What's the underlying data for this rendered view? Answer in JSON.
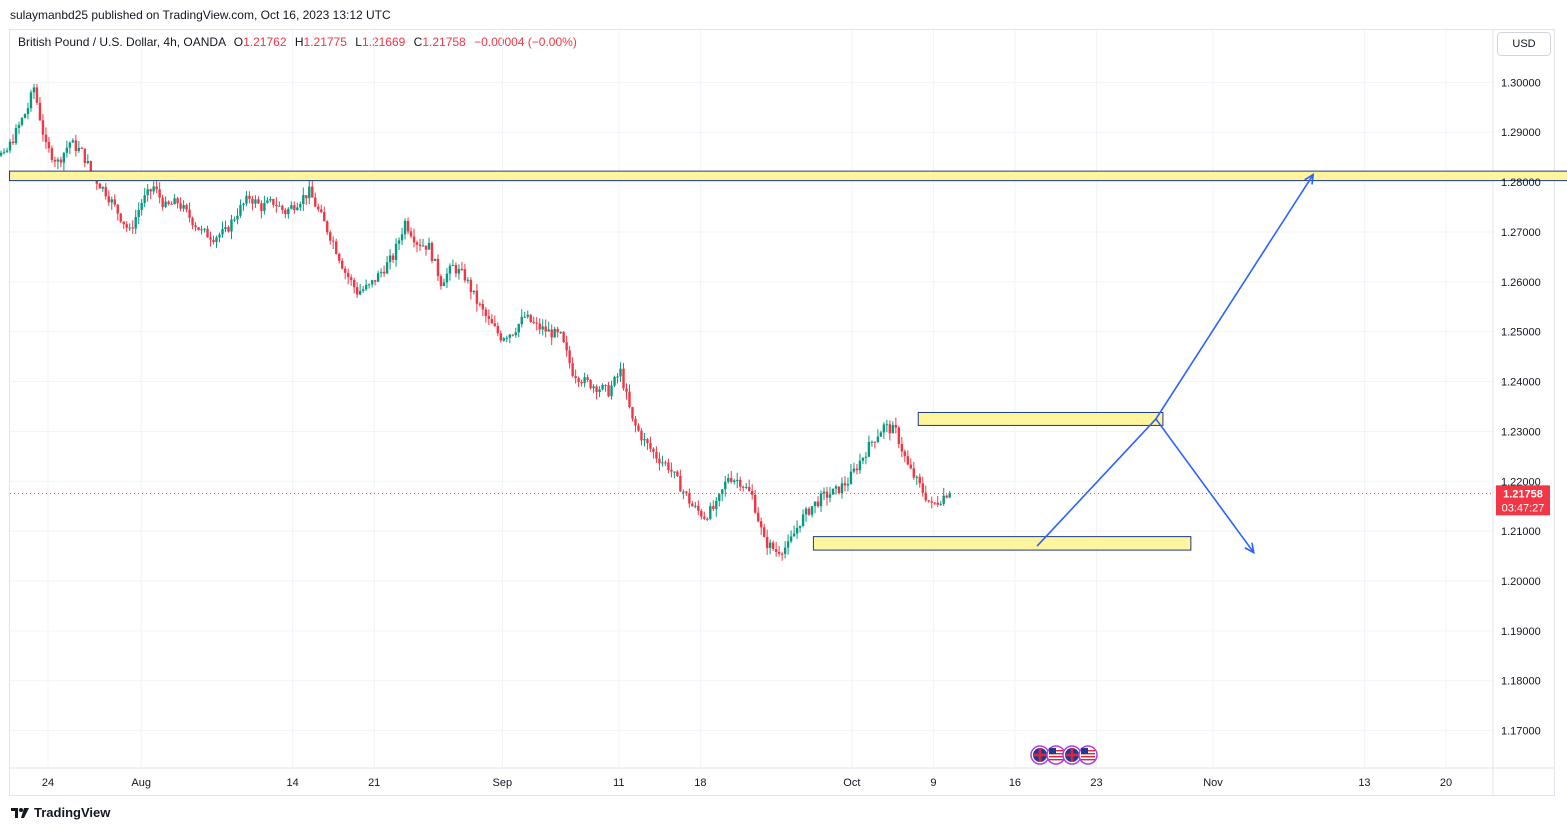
{
  "header": {
    "published_line": "sulaymanbd25 published on TradingView.com, Oct 16, 2023 13:12 UTC"
  },
  "legend": {
    "symbol": "British Pound / U.S. Dollar, 4h, OANDA",
    "open_label": "O",
    "open": "1.21762",
    "high_label": "H",
    "high": "1.21775",
    "low_label": "L",
    "low": "1.21669",
    "close_label": "C",
    "close": "1.21758",
    "change": "−0.00004 (−0.00%)"
  },
  "currency_button": "USD",
  "price_badge": {
    "price": "1.21758",
    "countdown": "03:47:27"
  },
  "footer": {
    "brand": "TradingView"
  },
  "colors": {
    "up": "#089981",
    "down": "#f23645",
    "zone_fill": "#fff59d",
    "zone_border": "#1e3a8a",
    "arrow": "#2962ff",
    "grid": "#f0f3fa"
  },
  "chart_data": {
    "type": "candlestick",
    "ylim": [
      1.1625,
      1.3105
    ],
    "y_ticks": [
      "1.30000",
      "1.29000",
      "1.28000",
      "1.27000",
      "1.26000",
      "1.25000",
      "1.24000",
      "1.23000",
      "1.22000",
      "1.21000",
      "1.20000",
      "1.19000",
      "1.18000",
      "1.17000"
    ],
    "x_ticks": [
      "24",
      "Aug",
      "14",
      "21",
      "Sep",
      "11",
      "18",
      "Oct",
      "9",
      "16",
      "23",
      "Nov",
      "13",
      "20"
    ],
    "last_price": 1.21758,
    "path_points": [
      [
        0,
        1.292
      ],
      [
        3,
        1.295
      ],
      [
        5,
        1.289
      ],
      [
        8,
        1.287
      ],
      [
        12,
        1.285
      ],
      [
        16,
        1.29
      ],
      [
        20,
        1.295
      ],
      [
        22,
        1.299
      ],
      [
        26,
        1.287
      ],
      [
        30,
        1.284
      ],
      [
        34,
        1.288
      ],
      [
        38,
        1.286
      ],
      [
        42,
        1.281
      ],
      [
        46,
        1.278
      ],
      [
        50,
        1.274
      ],
      [
        54,
        1.27
      ],
      [
        58,
        1.276
      ],
      [
        62,
        1.279
      ],
      [
        66,
        1.275
      ],
      [
        70,
        1.276
      ],
      [
        74,
        1.273
      ],
      [
        78,
        1.27
      ],
      [
        82,
        1.269
      ],
      [
        86,
        1.27
      ],
      [
        90,
        1.274
      ],
      [
        94,
        1.277
      ],
      [
        98,
        1.275
      ],
      [
        102,
        1.276
      ],
      [
        106,
        1.274
      ],
      [
        110,
        1.276
      ],
      [
        114,
        1.278
      ],
      [
        118,
        1.273
      ],
      [
        122,
        1.268
      ],
      [
        126,
        1.262
      ],
      [
        130,
        1.258
      ],
      [
        134,
        1.259
      ],
      [
        138,
        1.262
      ],
      [
        142,
        1.265
      ],
      [
        146,
        1.272
      ],
      [
        150,
        1.268
      ],
      [
        154,
        1.267
      ],
      [
        158,
        1.26
      ],
      [
        162,
        1.263
      ],
      [
        166,
        1.261
      ],
      [
        170,
        1.256
      ],
      [
        174,
        1.252
      ],
      [
        178,
        1.249
      ],
      [
        182,
        1.25
      ],
      [
        186,
        1.253
      ],
      [
        190,
        1.251
      ],
      [
        194,
        1.25
      ],
      [
        198,
        1.249
      ],
      [
        202,
        1.242
      ],
      [
        206,
        1.24
      ],
      [
        210,
        1.239
      ],
      [
        214,
        1.238
      ],
      [
        218,
        1.242
      ],
      [
        222,
        1.232
      ],
      [
        226,
        1.228
      ],
      [
        230,
        1.225
      ],
      [
        234,
        1.223
      ],
      [
        238,
        1.219
      ],
      [
        242,
        1.215
      ],
      [
        246,
        1.213
      ],
      [
        250,
        1.215
      ],
      [
        254,
        1.221
      ],
      [
        258,
        1.22
      ],
      [
        262,
        1.217
      ],
      [
        266,
        1.208
      ],
      [
        270,
        1.206
      ],
      [
        274,
        1.207
      ],
      [
        278,
        1.212
      ],
      [
        282,
        1.215
      ],
      [
        286,
        1.217
      ],
      [
        290,
        1.218
      ],
      [
        294,
        1.22
      ],
      [
        298,
        1.224
      ],
      [
        302,
        1.228
      ],
      [
        306,
        1.231
      ],
      [
        310,
        1.23
      ],
      [
        314,
        1.223
      ],
      [
        318,
        1.219
      ],
      [
        322,
        1.215
      ],
      [
        324,
        1.216
      ],
      [
        327,
        1.2176
      ]
    ],
    "zones": [
      {
        "x_start": 1,
        "x_end": 46,
        "y_low": 1.2803,
        "y_high": 1.2822
      },
      {
        "x_start": 27,
        "x_end": 34,
        "y_low": 1.2312,
        "y_high": 1.2338
      },
      {
        "x_start": 24,
        "x_end": 34.8,
        "y_low": 1.2062,
        "y_high": 1.2089
      }
    ],
    "arrows": [
      {
        "x": [
          30.4,
          33.8,
          38.3
        ],
        "y": [
          1.207,
          1.2325,
          1.2815
        ]
      },
      {
        "x": [
          33.8,
          36.6
        ],
        "y": [
          1.2325,
          1.2057
        ]
      }
    ],
    "event_icons": [
      "gb-flag",
      "us-flag",
      "gb-flag",
      "us-flag"
    ]
  }
}
